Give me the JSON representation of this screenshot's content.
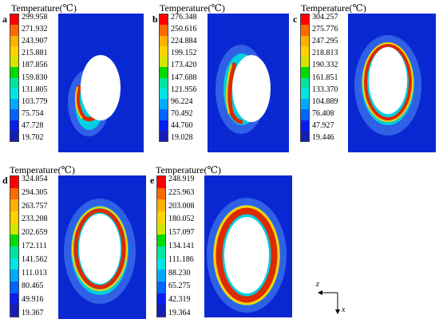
{
  "palette": [
    "#ff0000",
    "#ff6a00",
    "#ffb000",
    "#ffd200",
    "#d2e600",
    "#00dc00",
    "#00e6a0",
    "#00e6e6",
    "#00aaff",
    "#0064ff",
    "#0a1ef0",
    "#141eb4"
  ],
  "field_colors": {
    "background": "#0a28d2",
    "halo": "#2f60e6",
    "glow": "#00cfe0",
    "hot": "#dd2a00",
    "warm": "#ffd000",
    "green": "#00cc00"
  },
  "panels": [
    {
      "letter": "a",
      "title": "Temperature(℃)",
      "ticks": [
        "299.958",
        "271.932",
        "243.907",
        "215.881",
        "187.856",
        "159.830",
        "131.805",
        "103.779",
        "75.754",
        "47.728",
        "19.702"
      ]
    },
    {
      "letter": "b",
      "title": "Temperature(℃)",
      "ticks": [
        "276.348",
        "250.616",
        "224.884",
        "199.152",
        "173.420",
        "147.688",
        "121.956",
        "96.224",
        "70.492",
        "44.760",
        "19.028"
      ]
    },
    {
      "letter": "c",
      "title": "Temperature(℃)",
      "ticks": [
        "304.257",
        "275.776",
        "247.295",
        "218.813",
        "190.332",
        "161.851",
        "133.370",
        "104.889",
        "76.408",
        "47.927",
        "19.446"
      ]
    },
    {
      "letter": "d",
      "title": "Temperature(℃)",
      "ticks": [
        "324.854",
        "294.305",
        "263.757",
        "233.208",
        "202.659",
        "172.111",
        "141.562",
        "111.013",
        "80.465",
        "49.916",
        "19.367"
      ]
    },
    {
      "letter": "e",
      "title": "Temperature(℃)",
      "ticks": [
        "248.919",
        "225.963",
        "203.008",
        "180.052",
        "157.097",
        "134.141",
        "111.186",
        "88.230",
        "65.275",
        "42.319",
        "19.364"
      ]
    }
  ],
  "axis": {
    "z_label": "z",
    "x_label": "x"
  }
}
